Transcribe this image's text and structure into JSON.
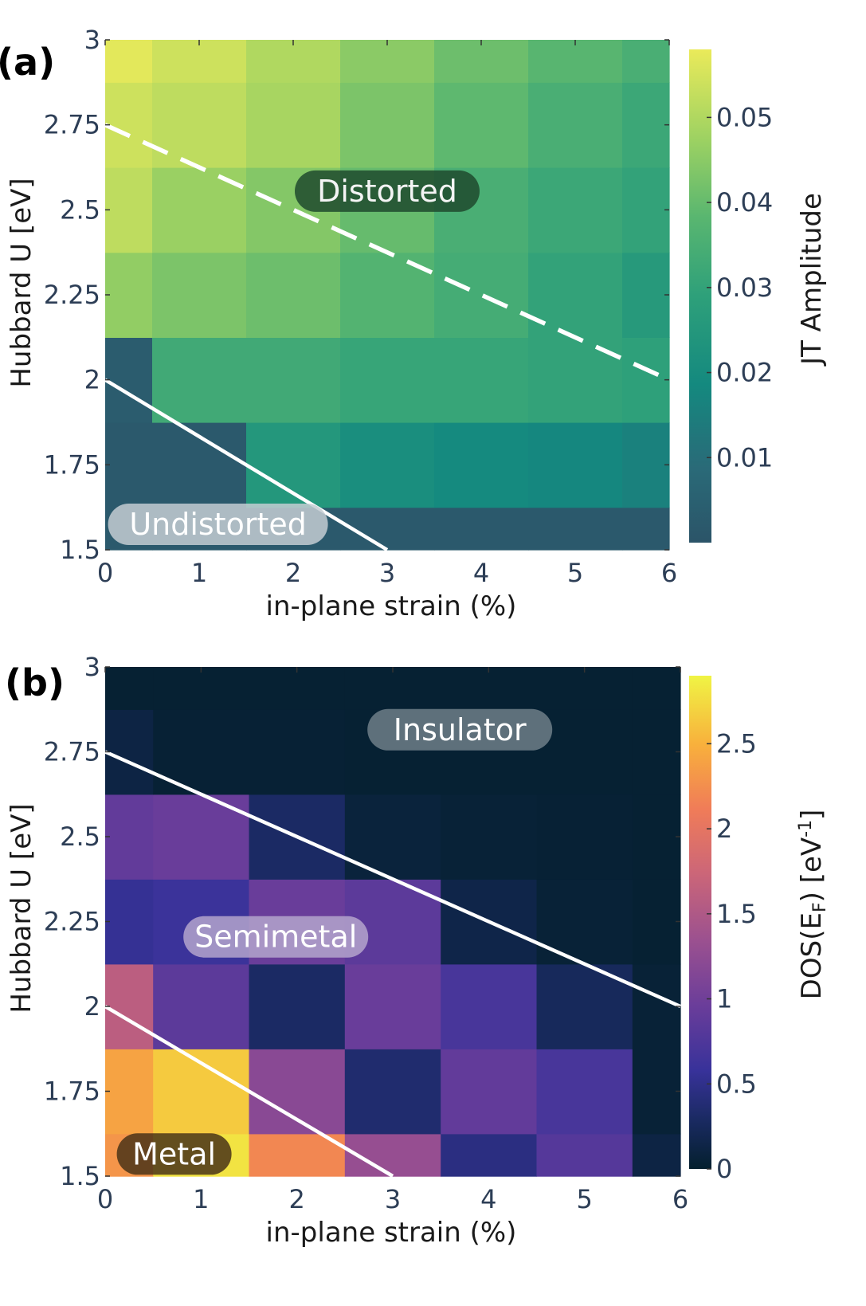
{
  "chart_data": [
    {
      "type": "heatmap",
      "panel_label": "(a)",
      "title": "",
      "xlabel": "in-plane strain (%)",
      "ylabel": "Hubbard U [eV]",
      "colorbar_label": "JT Amplitude",
      "colormap": "viridis",
      "xlim": [
        0,
        6
      ],
      "ylim": [
        1.5,
        3
      ],
      "x_ticks": [
        "0",
        "1",
        "2",
        "3",
        "4",
        "5",
        "6"
      ],
      "y_ticks": [
        "1.5",
        "1.75",
        "2",
        "2.25",
        "2.5",
        "2.75",
        "3"
      ],
      "colorbar_ticks": [
        "0.01",
        "0.02",
        "0.03",
        "0.04",
        "0.05"
      ],
      "color_range": [
        0,
        0.058
      ],
      "x": [
        0,
        1,
        2,
        3,
        4,
        5,
        6
      ],
      "y": [
        1.5,
        1.75,
        2.0,
        2.25,
        2.5,
        2.75,
        3.0
      ],
      "values": [
        [
          0.002,
          0.002,
          0.002,
          0.002,
          0.002,
          0.002,
          0.002
        ],
        [
          0.002,
          0.002,
          0.025,
          0.021,
          0.019,
          0.018,
          0.016
        ],
        [
          0.003,
          0.033,
          0.033,
          0.031,
          0.031,
          0.03,
          0.029
        ],
        [
          0.046,
          0.043,
          0.041,
          0.037,
          0.034,
          0.03,
          0.026
        ],
        [
          0.052,
          0.047,
          0.044,
          0.04,
          0.035,
          0.032,
          0.03
        ],
        [
          0.054,
          0.052,
          0.049,
          0.043,
          0.039,
          0.035,
          0.032
        ],
        [
          0.057,
          0.054,
          0.05,
          0.045,
          0.041,
          0.038,
          0.035
        ]
      ],
      "boundaries": [
        {
          "style": "dashed",
          "points": [
            [
              0,
              2.75
            ],
            [
              6,
              2.0
            ]
          ]
        },
        {
          "style": "solid",
          "points": [
            [
              0,
              2.0
            ],
            [
              3,
              1.5
            ]
          ]
        }
      ],
      "annotations": [
        {
          "text": "Distorted",
          "x": 3.0,
          "y": 2.555,
          "box_color": "#1e4a2e",
          "text_color": "#f4f4f4"
        },
        {
          "text": "Undistorted",
          "x": 1.2,
          "y": 1.575,
          "box_color": "#c4ccd2",
          "text_color": "#ffffff"
        }
      ]
    },
    {
      "type": "heatmap",
      "panel_label": "(b)",
      "title": "",
      "xlabel": "in-plane strain (%)",
      "ylabel": "Hubbard U [eV]",
      "colorbar_label_main": "DOS(E",
      "colorbar_label_sub": "F",
      "colorbar_label_mid": ") [eV",
      "colorbar_label_sup": "-1",
      "colorbar_label_end": "]",
      "colormap": "plasma",
      "xlim": [
        0,
        6
      ],
      "ylim": [
        1.5,
        3
      ],
      "x_ticks": [
        "0",
        "1",
        "2",
        "3",
        "4",
        "5",
        "6"
      ],
      "y_ticks": [
        "1.5",
        "1.75",
        "2",
        "2.25",
        "2.5",
        "2.75",
        "3"
      ],
      "colorbar_ticks": [
        "0",
        "0.5",
        "1",
        "1.5",
        "2",
        "2.5"
      ],
      "color_range": [
        0,
        2.9
      ],
      "x": [
        0,
        1,
        2,
        3,
        4,
        5,
        6
      ],
      "y": [
        1.5,
        1.75,
        2.0,
        2.25,
        2.5,
        2.75,
        3.0
      ],
      "values": [
        [
          2.3,
          2.8,
          2.2,
          1.3,
          0.45,
          0.8,
          0.12
        ],
        [
          2.4,
          2.65,
          1.2,
          0.35,
          0.9,
          0.7,
          0.05
        ],
        [
          1.6,
          0.85,
          0.3,
          0.95,
          0.7,
          0.25,
          0.05
        ],
        [
          0.55,
          0.6,
          0.95,
          0.85,
          0.15,
          0.05,
          0.03
        ],
        [
          0.9,
          0.95,
          0.3,
          0.08,
          0.05,
          0.04,
          0.03
        ],
        [
          0.12,
          0.04,
          0.04,
          0.03,
          0.03,
          0.03,
          0.03
        ],
        [
          0.03,
          0.03,
          0.03,
          0.03,
          0.03,
          0.03,
          0.03
        ]
      ],
      "boundaries": [
        {
          "style": "solid",
          "points": [
            [
              0,
              2.75
            ],
            [
              6,
              2.0
            ]
          ]
        },
        {
          "style": "solid",
          "points": [
            [
              0,
              2.0
            ],
            [
              3,
              1.5
            ]
          ]
        }
      ],
      "annotations": [
        {
          "text": "Insulator",
          "x": 3.7,
          "y": 2.815,
          "box_color": "#6e7e88",
          "text_color": "#ffffff"
        },
        {
          "text": "Semimetal",
          "x": 1.78,
          "y": 2.205,
          "box_color": "#b4a4cc",
          "text_color": "#ffffff"
        },
        {
          "text": "Metal",
          "x": 0.72,
          "y": 1.565,
          "box_color": "#4a3418",
          "text_color": "#ffffff"
        }
      ]
    }
  ]
}
